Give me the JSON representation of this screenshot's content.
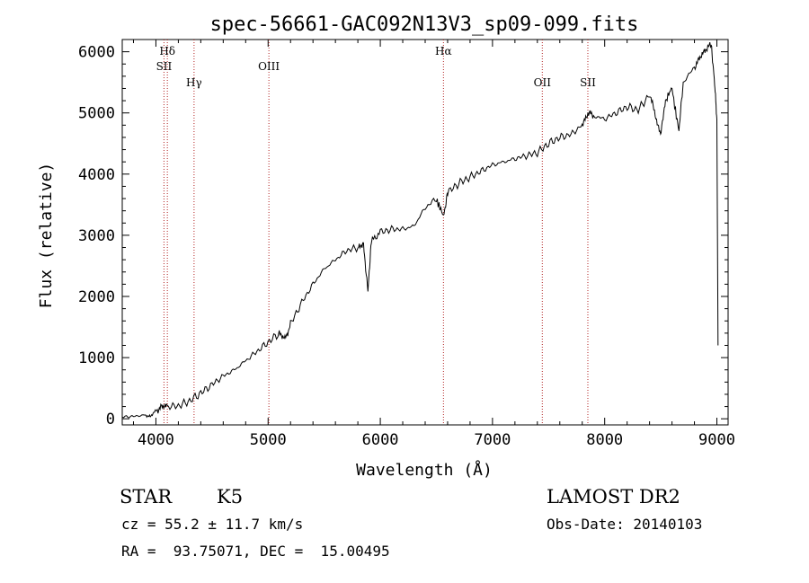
{
  "chart_data": {
    "type": "line",
    "title": "spec-56661-GAC092N13V3_sp09-099.fits",
    "xlabel": "Wavelength (Å)",
    "ylabel": "Flux (relative)",
    "xlim": [
      3700,
      9100
    ],
    "ylim": [
      -100,
      6200
    ],
    "xticks": [
      4000,
      5000,
      6000,
      7000,
      8000,
      9000
    ],
    "yticks": [
      0,
      1000,
      2000,
      3000,
      4000,
      5000,
      6000
    ],
    "grid": false,
    "line_color": "#000000",
    "marker_color": "#b22222",
    "series": [
      {
        "x": [
          3700,
          3800,
          3900,
          3950,
          4000,
          4050,
          4100,
          4200,
          4300,
          4400,
          4500,
          4600,
          4700,
          4800,
          4900,
          5000,
          5100,
          5150,
          5200,
          5300,
          5400,
          5500,
          5600,
          5700,
          5800,
          5850,
          5890,
          5920,
          6000,
          6100,
          6200,
          6300,
          6400,
          6500,
          6563,
          6600,
          6700,
          6800,
          6900,
          7000,
          7100,
          7200,
          7300,
          7400,
          7500,
          7600,
          7700,
          7800,
          7850,
          7900,
          8000,
          8100,
          8200,
          8300,
          8400,
          8450,
          8498,
          8542,
          8600,
          8662,
          8700,
          8800,
          8850,
          8900,
          8950,
          8980,
          9000
        ],
        "y": [
          30,
          40,
          60,
          40,
          130,
          200,
          200,
          210,
          290,
          420,
          560,
          700,
          800,
          950,
          1100,
          1250,
          1400,
          1300,
          1550,
          1900,
          2200,
          2450,
          2600,
          2750,
          2800,
          2850,
          2100,
          2900,
          3050,
          3100,
          3100,
          3150,
          3450,
          3600,
          3300,
          3700,
          3850,
          3950,
          4050,
          4150,
          4200,
          4250,
          4300,
          4350,
          4500,
          4600,
          4650,
          4800,
          5000,
          4950,
          4900,
          5000,
          5100,
          5050,
          5300,
          5000,
          4600,
          5200,
          5400,
          4700,
          5500,
          5750,
          5900,
          6050,
          6100,
          5500,
          4900
        ]
      }
    ],
    "lines": [
      {
        "label": "Hδ",
        "x": 4102,
        "row": 1
      },
      {
        "label": "SII",
        "x": 4072,
        "row": 2
      },
      {
        "label": "Hγ",
        "x": 4340,
        "row": 3
      },
      {
        "label": "OIII",
        "x": 5007,
        "row": 2
      },
      {
        "label": "Hα",
        "x": 6563,
        "row": 1
      },
      {
        "label": "OII",
        "x": 7444,
        "row": 3
      },
      {
        "label": "SII",
        "x": 7850,
        "row": 3
      }
    ]
  },
  "info": {
    "class": "STAR",
    "subclass": "K5",
    "survey": "LAMOST DR2",
    "cz": "cz = 55.2 ± 11.7 km/s",
    "obs_date": "Obs-Date: 20140103",
    "coords": "RA =  93.75071, DEC =  15.00495"
  }
}
